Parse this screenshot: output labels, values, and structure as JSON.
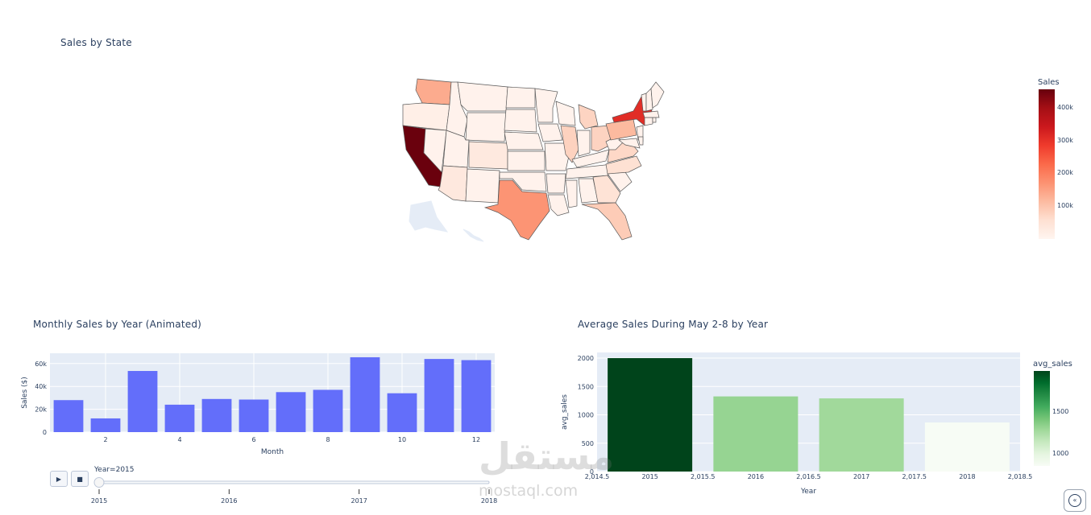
{
  "colors": {
    "plot_bg": "#e5ecf6",
    "bar_blue": "#636efa",
    "text": "#2a3f5f",
    "reds": [
      "#fff5f0",
      "#fee0d2",
      "#fcbba1",
      "#fc9272",
      "#fb6a4a",
      "#ef3b2c",
      "#cb181d",
      "#a50f15",
      "#67000d"
    ],
    "greens": [
      "#f7fcf5",
      "#e5f5e0",
      "#c7e9c0",
      "#a1d99b",
      "#74c476",
      "#41ab5d",
      "#238b45",
      "#006d2c",
      "#00441b"
    ]
  },
  "map_panel": {
    "title": "Sales by State",
    "colorbar": {
      "title": "Sales",
      "ticks": [
        "400k",
        "300k",
        "200k",
        "100k"
      ]
    }
  },
  "monthly_panel": {
    "title": "Monthly Sales by Year (Animated)",
    "play_icon": "play-icon",
    "stop_icon": "stop-icon",
    "slider": {
      "current_label": "Year=2015",
      "steps": [
        "2015",
        "2016",
        "2017",
        "2018"
      ],
      "selected_index": 0
    }
  },
  "avg_panel": {
    "title": "Average Sales During May 2-8 by Year",
    "colorbar": {
      "title": "avg_sales",
      "ticks": [
        "1500",
        "1000"
      ]
    }
  },
  "watermark": {
    "arabic": "مستقل",
    "latin": "mostaql.com"
  },
  "chart_data": [
    {
      "type": "choropleth",
      "title": "Sales by State",
      "scope": "usa",
      "colorscale": "Reds",
      "range": [
        0,
        460000
      ],
      "regions": [
        {
          "state": "CA",
          "value": 457000
        },
        {
          "state": "NY",
          "value": 310000
        },
        {
          "state": "TX",
          "value": 170000
        },
        {
          "state": "WA",
          "value": 138000
        },
        {
          "state": "PA",
          "value": 117000
        },
        {
          "state": "IL",
          "value": 80000
        },
        {
          "state": "OH",
          "value": 78000
        },
        {
          "state": "FL",
          "value": 89000
        },
        {
          "state": "MI",
          "value": 76000
        },
        {
          "state": "VA",
          "value": 70000
        },
        {
          "state": "NC",
          "value": 55000
        },
        {
          "state": "GA",
          "value": 49000
        },
        {
          "state": "CO",
          "value": 32000
        },
        {
          "state": "AZ",
          "value": 35000
        },
        {
          "state": "OR",
          "value": 17000
        }
      ]
    },
    {
      "type": "bar",
      "title": "Monthly Sales by Year (Animated)",
      "xlabel": "Month",
      "ylabel": "Sales ($)",
      "x": [
        1,
        2,
        3,
        4,
        5,
        6,
        7,
        8,
        9,
        10,
        11,
        12
      ],
      "values": [
        28000,
        12000,
        53500,
        24000,
        29000,
        28500,
        35000,
        37000,
        65500,
        34000,
        64000,
        63000
      ],
      "xlim": [
        0.5,
        12.5
      ],
      "ylim": [
        0,
        69000
      ],
      "xticks": [
        2,
        4,
        6,
        8,
        10,
        12
      ],
      "yticks": [
        0,
        20000,
        40000,
        60000
      ],
      "ytick_labels": [
        "0",
        "20k",
        "40k",
        "60k"
      ],
      "grid": true
    },
    {
      "type": "bar",
      "title": "Average Sales During May 2-8 by Year",
      "xlabel": "Year",
      "ylabel": "avg_sales",
      "categories": [
        "2015",
        "2016",
        "2017",
        "2018"
      ],
      "x": [
        2015,
        2016,
        2017,
        2018
      ],
      "values": [
        2000,
        1325,
        1290,
        865
      ],
      "xlim": [
        2014.5,
        2018.5
      ],
      "ylim": [
        0,
        2100
      ],
      "xticks_minor": [
        "2,014.5",
        "2,015.5",
        "2,016.5",
        "2,017.5",
        "2,018.5"
      ],
      "yticks": [
        0,
        500,
        1000,
        1500,
        2000
      ],
      "colorscale": "Greens",
      "color_range": [
        865,
        2000
      ],
      "grid": true
    }
  ]
}
